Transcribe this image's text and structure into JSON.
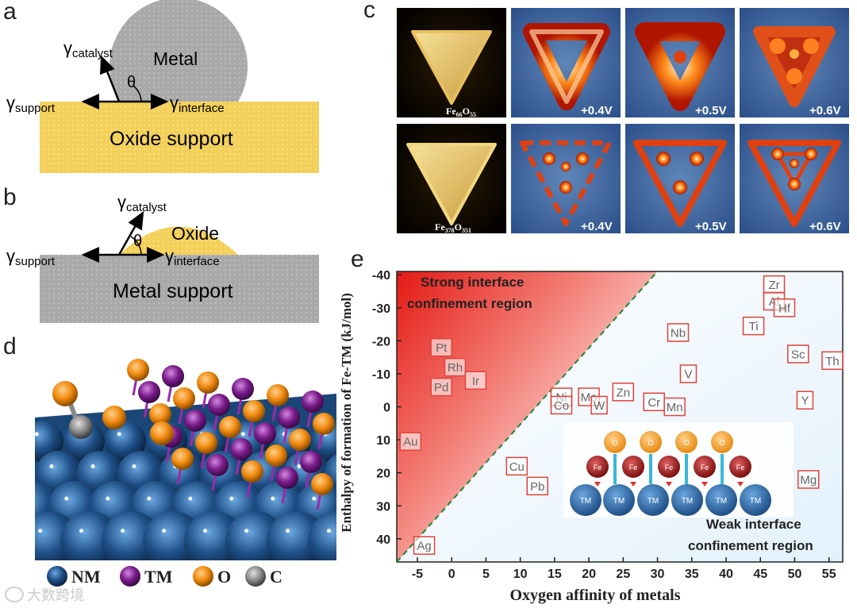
{
  "panel_a": {
    "letter": "a",
    "gamma": "γ",
    "catalyst_sub": "catalyst",
    "support_sub": "support",
    "interface_sub": "interface",
    "theta": "θ",
    "particle_label": "Metal",
    "substrate_label": "Oxide support"
  },
  "panel_b": {
    "letter": "b",
    "gamma": "γ",
    "catalyst_sub": "catalyst",
    "support_sub": "support",
    "interface_sub": "interface",
    "theta": "θ",
    "particle_label": "Oxide",
    "substrate_label": "Metal support"
  },
  "panel_c": {
    "letter": "c",
    "rows": [
      {
        "formula_el1": "Fe",
        "formula_sub1": "66",
        "formula_el2": "O",
        "formula_sub2": "55",
        "biases": [
          "+0.4V",
          "+0.5V",
          "+0.6V"
        ]
      },
      {
        "formula_el1": "Fe",
        "formula_sub1": "378",
        "formula_el2": "O",
        "formula_sub2": "351",
        "biases": [
          "+0.4V",
          "+0.5V",
          "+0.6V"
        ]
      }
    ]
  },
  "panel_d": {
    "letter": "d",
    "legend": [
      {
        "label": "NM",
        "color": "#1f4f86"
      },
      {
        "label": "TM",
        "color": "#7a1b8a"
      },
      {
        "label": "O",
        "color": "#f08a10"
      },
      {
        "label": "C",
        "color": "#8a8a8a"
      }
    ],
    "watermark": "大数跨境"
  },
  "panel_e": {
    "letter": "e",
    "chart_data": {
      "type": "scatter",
      "xlabel": "Oxygen affinity of metals",
      "ylabel": "Enthalpy of formation of Fe-TM (kJ/mol)",
      "xlim": [
        -8,
        57
      ],
      "ylim": [
        47,
        -41
      ],
      "xticks": [
        -5,
        0,
        5,
        10,
        15,
        20,
        25,
        30,
        35,
        40,
        45,
        50,
        55
      ],
      "xtick_labels": [
        "-5",
        "0",
        "5",
        "10",
        "15",
        "20",
        "25",
        "30",
        "35",
        "40",
        "45",
        "50",
        "55"
      ],
      "yticks": [
        -40,
        -30,
        -20,
        -10,
        0,
        10,
        20,
        30,
        40
      ],
      "ytick_labels": [
        "-40",
        "-30",
        "-20",
        "-10",
        "0",
        "10",
        "20",
        "30",
        "40"
      ],
      "region_strong": [
        "Strong interface",
        "confinement region"
      ],
      "region_weak": [
        "Weak interface",
        "confinement region"
      ],
      "divider": {
        "x": [
          -8,
          30
        ],
        "y": [
          47,
          -41
        ]
      },
      "points": [
        {
          "label": "Zr",
          "x": 47.0,
          "y": -37.0
        },
        {
          "label": "Al",
          "x": 47.0,
          "y": -32.0
        },
        {
          "label": "Hf",
          "x": 48.5,
          "y": -30.0
        },
        {
          "label": "Ti",
          "x": 44.0,
          "y": -24.5
        },
        {
          "label": "Nb",
          "x": 33.0,
          "y": -22.5
        },
        {
          "label": "Sc",
          "x": 50.5,
          "y": -16.0
        },
        {
          "label": "Th",
          "x": 55.5,
          "y": -14.0
        },
        {
          "label": "V",
          "x": 34.5,
          "y": -10.0
        },
        {
          "label": "Pt",
          "x": -1.5,
          "y": -18.0
        },
        {
          "label": "Rh",
          "x": 0.5,
          "y": -12.0
        },
        {
          "label": "Ir",
          "x": 3.5,
          "y": -8.0
        },
        {
          "label": "Pd",
          "x": -1.5,
          "y": -6.0
        },
        {
          "label": "Zn",
          "x": 25.0,
          "y": -4.5
        },
        {
          "label": "Ni",
          "x": 16.0,
          "y": -3.0
        },
        {
          "label": "Mo",
          "x": 20.0,
          "y": -3.0
        },
        {
          "label": "Co",
          "x": 16.0,
          "y": -0.5
        },
        {
          "label": "W",
          "x": 21.5,
          "y": -0.5
        },
        {
          "label": "Cr",
          "x": 29.5,
          "y": -1.5
        },
        {
          "label": "Mn",
          "x": 32.5,
          "y": 0.0
        },
        {
          "label": "Y",
          "x": 51.5,
          "y": -2.0
        },
        {
          "label": "Au",
          "x": -6.0,
          "y": 10.5
        },
        {
          "label": "Cu",
          "x": 9.5,
          "y": 18.0
        },
        {
          "label": "Pb",
          "x": 12.5,
          "y": 24.0
        },
        {
          "label": "Mg",
          "x": 52.0,
          "y": 22.0
        },
        {
          "label": "Ag",
          "x": -4.0,
          "y": 42.0
        }
      ]
    },
    "inset": {
      "top_label": "O",
      "mid_label": "Fe",
      "bottom_label": "TM"
    }
  }
}
